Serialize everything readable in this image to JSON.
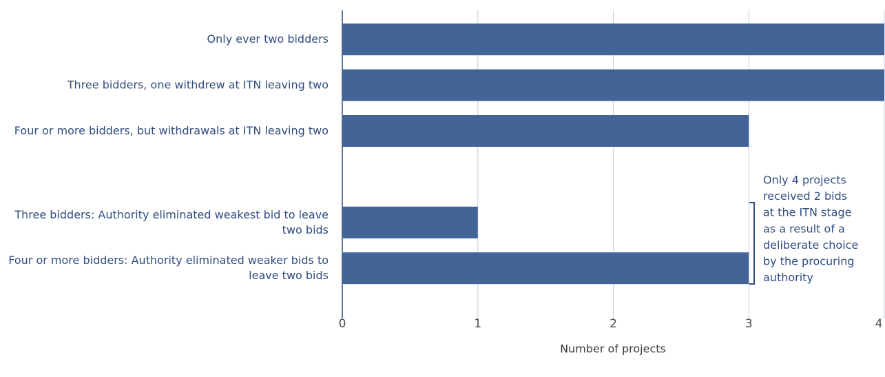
{
  "chart_data": {
    "type": "bar",
    "orientation": "horizontal",
    "categories": [
      "Only ever two bidders",
      "Three bidders, one withdrew at ITN leaving two",
      "Four or more bidders, but withdrawals at ITN leaving two",
      null,
      "Three bidders: Authority eliminated weakest bid to leave two bids",
      "Four or more bidders: Authority eliminated weaker bids to leave two bids"
    ],
    "values": [
      4,
      4,
      3,
      null,
      1,
      3
    ],
    "color": "#436496",
    "xlim": [
      0,
      4
    ],
    "xticks": [
      0,
      1,
      2,
      3,
      4
    ],
    "grid": true,
    "x_label": "Number of projects",
    "annotation": [
      "Only 4 projects",
      "received 2 bids",
      "at the ITN stage",
      "as a result of a",
      "deliberate choice",
      "by the procuring",
      "authority"
    ]
  }
}
